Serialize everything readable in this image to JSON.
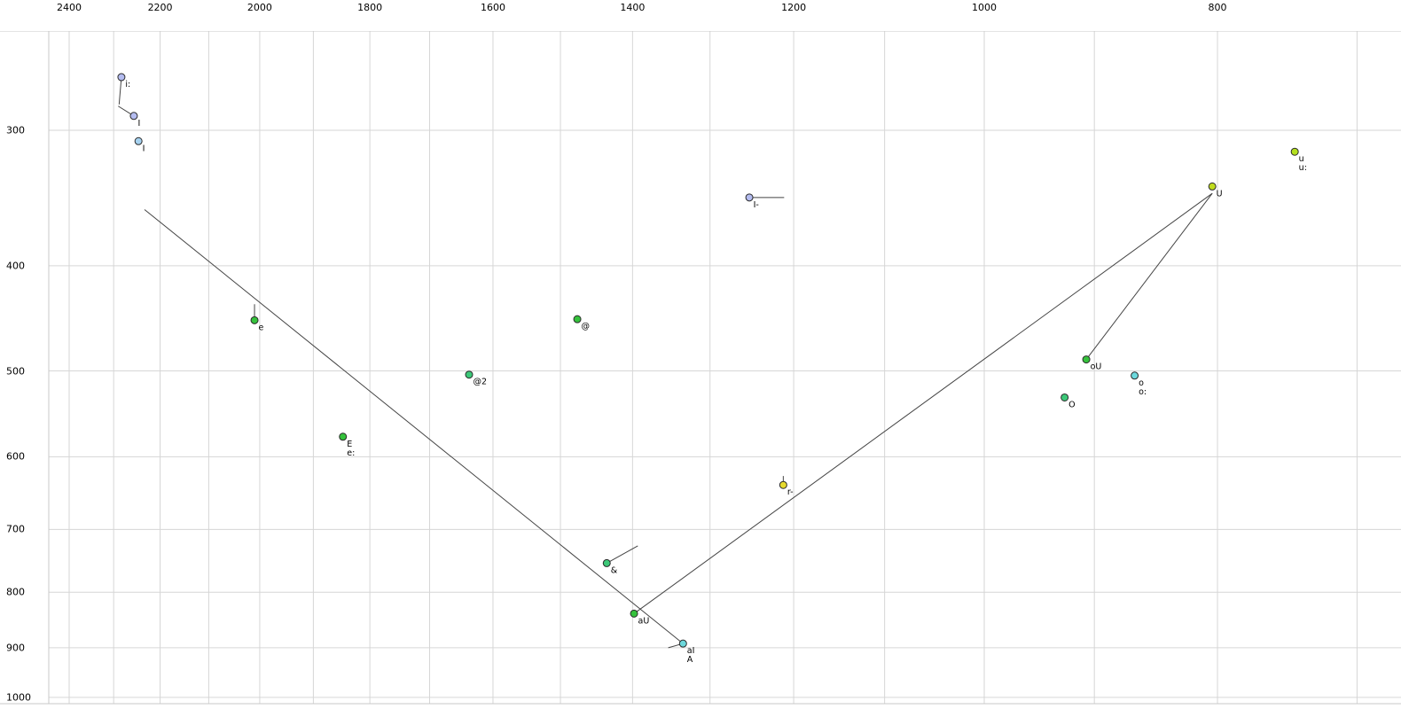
{
  "chart_data": {
    "type": "scatter",
    "description": "Vowel formant plot, F2 on top axis (log scale, decreasing rightward), F1 on left axis (log scale, increasing downward)",
    "x_axis": {
      "labeled_ticks": [
        2400,
        2200,
        2000,
        1800,
        1600,
        1400,
        1200,
        1000,
        800
      ],
      "minor_grid_step": 100,
      "grid_max": 2400,
      "grid_min": 700,
      "scale": "log-reversed",
      "position": "top"
    },
    "y_axis": {
      "labeled_ticks": [
        300,
        400,
        500,
        600,
        700,
        800,
        900,
        1000
      ],
      "scale": "log",
      "position": "left"
    },
    "points": [
      {
        "label": "i:",
        "f2": 2283,
        "f1": 268,
        "color": "#b4bcf0"
      },
      {
        "label": "I",
        "f2": 2256,
        "f1": 291,
        "color": "#b4bcf0"
      },
      {
        "label": "I",
        "f2": 2246,
        "f1": 307,
        "color": "#a6d2f0"
      },
      {
        "label": "u",
        "label2": "u:",
        "f2": 743,
        "f1": 314,
        "color": "#b4e01e"
      },
      {
        "label": "U",
        "f2": 804,
        "f1": 338,
        "color": "#c0dc1e"
      },
      {
        "label": "I-",
        "f2": 1252,
        "f1": 346,
        "color": "#b4bcf0"
      },
      {
        "label": "e",
        "f2": 2010,
        "f1": 449,
        "color": "#35c23c"
      },
      {
        "label": "@",
        "f2": 1476,
        "f1": 448,
        "color": "#35c23c"
      },
      {
        "label": "@2",
        "f2": 1637,
        "f1": 504,
        "color": "#3cc878"
      },
      {
        "label": "oU",
        "f2": 907,
        "f1": 488,
        "color": "#35c23c"
      },
      {
        "label": "o",
        "label2": "o:",
        "f2": 866,
        "f1": 505,
        "color": "#6cd8dc"
      },
      {
        "label": "O",
        "f2": 926,
        "f1": 529,
        "color": "#3cc878"
      },
      {
        "label": "E",
        "label2": "e:",
        "f2": 1847,
        "f1": 575,
        "color": "#35c23c"
      },
      {
        "label": "r-",
        "f2": 1212,
        "f1": 637,
        "color": "#e6da2e"
      },
      {
        "label": "&",
        "f2": 1435,
        "f1": 752,
        "color": "#3cc878"
      },
      {
        "label": "aU",
        "f2": 1398,
        "f1": 837,
        "color": "#35c23c"
      },
      {
        "label": "aI",
        "label2": "A",
        "f2": 1334,
        "f1": 892,
        "color": "#6cd8dc"
      }
    ],
    "lines": [
      {
        "name": "aI-offglide",
        "from": {
          "f2": 2233,
          "f1": 355
        },
        "to": {
          "f2": 1334,
          "f1": 892
        }
      },
      {
        "name": "aU-offglide",
        "from": {
          "f2": 1398,
          "f1": 837
        },
        "to": {
          "f2": 804,
          "f1": 343
        }
      },
      {
        "name": "oU-offglide",
        "from": {
          "f2": 907,
          "f1": 488
        },
        "to": {
          "f2": 804,
          "f1": 343
        }
      },
      {
        "name": "i-tail",
        "from": {
          "f2": 2283,
          "f1": 268
        },
        "to": {
          "f2": 2288,
          "f1": 284
        }
      },
      {
        "name": "i-I-link",
        "from": {
          "f2": 2290,
          "f1": 285
        },
        "to": {
          "f2": 2256,
          "f1": 291
        }
      },
      {
        "name": "e-tail",
        "from": {
          "f2": 2010,
          "f1": 434
        },
        "to": {
          "f2": 2010,
          "f1": 449
        }
      },
      {
        "name": "I--tail",
        "from": {
          "f2": 1252,
          "f1": 346
        },
        "to": {
          "f2": 1211,
          "f1": 346
        }
      },
      {
        "name": "r--tail",
        "from": {
          "f2": 1212,
          "f1": 625
        },
        "to": {
          "f2": 1212,
          "f1": 637
        }
      },
      {
        "name": "amp-tail",
        "from": {
          "f2": 1435,
          "f1": 752
        },
        "to": {
          "f2": 1393,
          "f1": 725
        }
      },
      {
        "name": "aI-tail",
        "from": {
          "f2": 1334,
          "f1": 892
        },
        "to": {
          "f2": 1353,
          "f1": 900
        }
      }
    ]
  },
  "colors": {
    "grid": "#d6d6d6",
    "border": "#c8c8c8",
    "line": "#444444",
    "point_stroke": "#2a2a2a",
    "label": "#000000",
    "background": "#ffffff"
  }
}
